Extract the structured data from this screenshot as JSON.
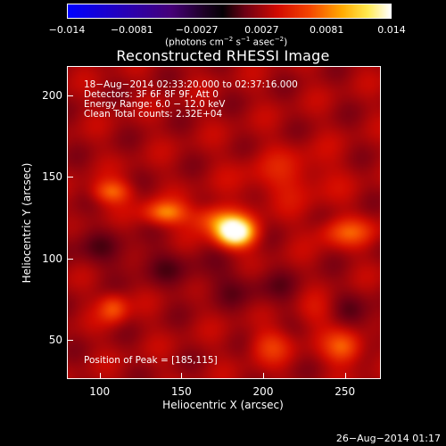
{
  "chart_data": {
    "type": "heatmap",
    "title": "Reconstructed RHESSI Image",
    "xlabel": "Heliocentric X (arcsec)",
    "ylabel": "Heliocentric Y (arcsec)",
    "xlim": [
      80,
      272
    ],
    "ylim": [
      26,
      218
    ],
    "x_ticks": [
      "100",
      "150",
      "200",
      "250"
    ],
    "x_tick_values": [
      100,
      150,
      200,
      250
    ],
    "y_ticks": [
      "50",
      "100",
      "150",
      "200"
    ],
    "y_tick_values": [
      50,
      100,
      150,
      200
    ],
    "colorbar": {
      "ticks": [
        "−0.014",
        "−0.0081",
        "−0.0027",
        "0.0027",
        "0.0081",
        "0.014"
      ],
      "label_main": "(photons cm",
      "label_sup1": "−2",
      "label_mid1": " s",
      "label_sup2": "−1",
      "label_mid2": " asec",
      "label_sup3": "−2",
      "label_end": ")",
      "range": [
        -0.014,
        0.014
      ]
    },
    "annotations": {
      "time": "18−Aug−2014 02:33:20.000 to 02:37:16.000",
      "detectors": "Detectors: 3F 6F 8F 9F, Att 0",
      "energy": "Energy Range: 6.0 − 12.0 keV",
      "clean": "Clean    Total counts: 2.32E+04",
      "peak": "Position of Peak = [185,115]"
    },
    "peak": [
      185,
      115
    ],
    "sources": [
      {
        "x": 183,
        "y": 116,
        "amp": 0.014,
        "sx": 8,
        "sy": 6
      },
      {
        "x": 140,
        "y": 128,
        "amp": 0.006,
        "sx": 9,
        "sy": 5
      },
      {
        "x": 107,
        "y": 141,
        "amp": 0.005,
        "sx": 8,
        "sy": 5
      },
      {
        "x": 170,
        "y": 124,
        "amp": 0.0045,
        "sx": 10,
        "sy": 6
      },
      {
        "x": 252,
        "y": 116,
        "amp": 0.004,
        "sx": 12,
        "sy": 6
      },
      {
        "x": 108,
        "y": 69,
        "amp": 0.0045,
        "sx": 6,
        "sy": 6
      },
      {
        "x": 250,
        "y": 45,
        "amp": 0.005,
        "sx": 8,
        "sy": 7
      },
      {
        "x": 205,
        "y": 46,
        "amp": 0.003,
        "sx": 9,
        "sy": 7
      },
      {
        "x": 232,
        "y": 68,
        "amp": 0.0025,
        "sx": 10,
        "sy": 8
      },
      {
        "x": 215,
        "y": 150,
        "amp": 0.002,
        "sx": 20,
        "sy": 12
      }
    ],
    "background": 0.0029
  },
  "footer": {
    "timestamp": "26−Aug−2014 01:17"
  }
}
